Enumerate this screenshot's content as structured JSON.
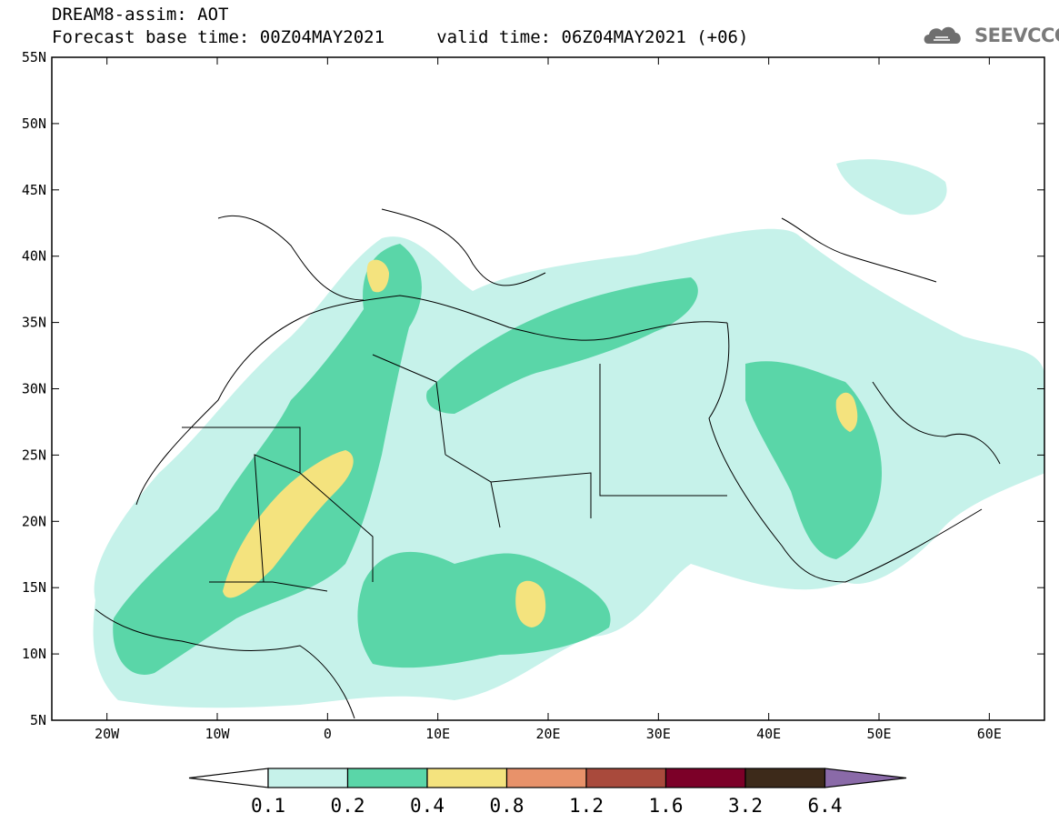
{
  "header": {
    "title_line1": "DREAM8-assim: AOT",
    "title_line2": "Forecast base time: 00Z04MAY2021     valid time: 06Z04MAY2021 (+06)",
    "logo_text": "SEEVCCC"
  },
  "map": {
    "variable": "AOT",
    "lon_range": [
      -25,
      65
    ],
    "lat_range": [
      5,
      55
    ],
    "lon_ticks": [
      {
        "value": -20,
        "label": "20W"
      },
      {
        "value": -10,
        "label": "10W"
      },
      {
        "value": 0,
        "label": "0"
      },
      {
        "value": 10,
        "label": "10E"
      },
      {
        "value": 20,
        "label": "20E"
      },
      {
        "value": 30,
        "label": "30E"
      },
      {
        "value": 40,
        "label": "40E"
      },
      {
        "value": 50,
        "label": "50E"
      },
      {
        "value": 60,
        "label": "60E"
      }
    ],
    "lat_ticks": [
      {
        "value": 55,
        "label": "55N"
      },
      {
        "value": 50,
        "label": "50N"
      },
      {
        "value": 45,
        "label": "45N"
      },
      {
        "value": 40,
        "label": "40N"
      },
      {
        "value": 35,
        "label": "35N"
      },
      {
        "value": 30,
        "label": "30N"
      },
      {
        "value": 25,
        "label": "25N"
      },
      {
        "value": 20,
        "label": "20N"
      },
      {
        "value": 15,
        "label": "15N"
      },
      {
        "value": 10,
        "label": "10N"
      },
      {
        "value": 5,
        "label": "5N"
      }
    ]
  },
  "colorbar": {
    "levels": [
      "0.1",
      "0.2",
      "0.4",
      "0.8",
      "1.2",
      "1.6",
      "3.2",
      "6.4"
    ],
    "colors": [
      "#ffffff",
      "#c6f2ea",
      "#5ad6a8",
      "#f4e37e",
      "#e8926a",
      "#a94a3c",
      "#7c0028",
      "#3d2a1a",
      "#8a6aa8"
    ]
  }
}
